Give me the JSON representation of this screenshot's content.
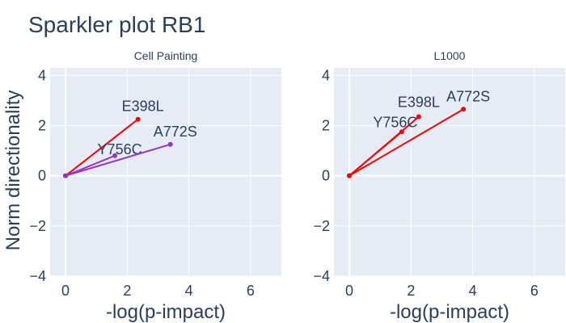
{
  "figure_title": "Sparkler plot RB1",
  "shared_ylabel": "Norm directionality",
  "chart_data": [
    {
      "type": "line",
      "title": "Cell Painting",
      "xlabel": "-log(p-impact)",
      "ylabel": "Norm directionality",
      "xlim": [
        -0.5,
        7
      ],
      "ylim": [
        -4,
        4.3
      ],
      "xticks": [
        0,
        2,
        4,
        6
      ],
      "yticks": [
        -4,
        -2,
        0,
        2,
        4
      ],
      "grid": true,
      "series": [
        {
          "name": "E398L",
          "x": [
            0,
            2.35
          ],
          "y": [
            0,
            2.25
          ],
          "color": "#ff0000"
        },
        {
          "name": "Y756C",
          "x": [
            0,
            1.6
          ],
          "y": [
            0,
            0.8
          ],
          "color": "#9932cc"
        },
        {
          "name": "A772S",
          "x": [
            0,
            3.4
          ],
          "y": [
            0,
            1.25
          ],
          "color": "#9932cc"
        }
      ]
    },
    {
      "type": "line",
      "title": "L1000",
      "xlabel": "-log(p-impact)",
      "ylabel": "",
      "xlim": [
        -0.5,
        7
      ],
      "ylim": [
        -4,
        4.3
      ],
      "xticks": [
        0,
        2,
        4,
        6
      ],
      "yticks": [
        -4,
        -2,
        0,
        2,
        4
      ],
      "grid": true,
      "series": [
        {
          "name": "E398L",
          "x": [
            0,
            2.25
          ],
          "y": [
            0,
            2.35
          ],
          "color": "#ff0000"
        },
        {
          "name": "Y756C",
          "x": [
            0,
            1.7
          ],
          "y": [
            0,
            1.75
          ],
          "color": "#ff0000"
        },
        {
          "name": "A772S",
          "x": [
            0,
            3.7
          ],
          "y": [
            0,
            2.65
          ],
          "color": "#ff0000"
        }
      ]
    }
  ]
}
